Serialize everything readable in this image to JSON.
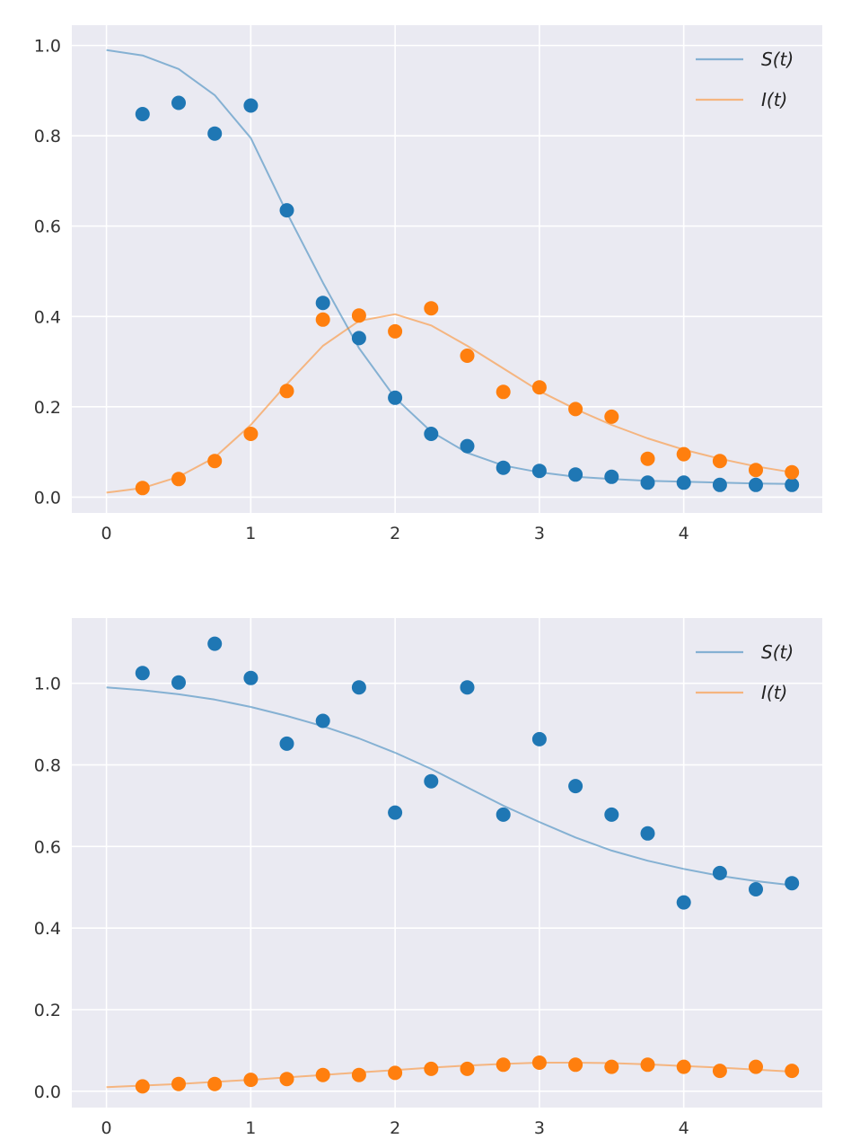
{
  "chart_data": [
    {
      "type": "line",
      "title": "",
      "xlabel": "",
      "ylabel": "",
      "xlim": [
        -0.24,
        4.96
      ],
      "ylim": [
        -0.035,
        1.045
      ],
      "xticks": [
        "0",
        "1",
        "2",
        "3",
        "4"
      ],
      "yticks": [
        "0.0",
        "0.2",
        "0.4",
        "0.6",
        "0.8",
        "1.0"
      ],
      "grid": true,
      "legend_position": "top-right",
      "colors": {
        "S": "#1f77b4",
        "I": "#ff7f0e",
        "background": "#eaeaf2"
      },
      "legend": [
        {
          "label": "S(t)",
          "series": "S"
        },
        {
          "label": "I(t)",
          "series": "I"
        }
      ],
      "series": [
        {
          "name": "S(t)",
          "kind": "line",
          "key": "S",
          "x": [
            0,
            0.25,
            0.5,
            0.75,
            1,
            1.25,
            1.5,
            1.75,
            2,
            2.25,
            2.5,
            2.75,
            3,
            3.25,
            3.5,
            3.75,
            4,
            4.25,
            4.5,
            4.75
          ],
          "y": [
            0.99,
            0.978,
            0.948,
            0.89,
            0.795,
            0.63,
            0.475,
            0.33,
            0.22,
            0.145,
            0.098,
            0.07,
            0.055,
            0.045,
            0.04,
            0.036,
            0.034,
            0.032,
            0.03,
            0.029
          ]
        },
        {
          "name": "I(t)",
          "kind": "line",
          "key": "I",
          "x": [
            0,
            0.25,
            0.5,
            0.75,
            1,
            1.25,
            1.5,
            1.75,
            2,
            2.25,
            2.5,
            2.75,
            3,
            3.25,
            3.5,
            3.75,
            4,
            4.25,
            4.5,
            4.75
          ],
          "y": [
            0.01,
            0.02,
            0.045,
            0.088,
            0.16,
            0.25,
            0.335,
            0.39,
            0.405,
            0.38,
            0.335,
            0.285,
            0.235,
            0.195,
            0.16,
            0.13,
            0.105,
            0.085,
            0.068,
            0.055
          ]
        },
        {
          "name": "S data",
          "kind": "scatter",
          "key": "S",
          "x": [
            0.25,
            0.5,
            0.75,
            1,
            1.25,
            1.5,
            1.75,
            2,
            2.25,
            2.5,
            2.75,
            3,
            3.25,
            3.5,
            3.75,
            4,
            4.25,
            4.5,
            4.75
          ],
          "y": [
            0.848,
            0.873,
            0.805,
            0.867,
            0.635,
            0.43,
            0.352,
            0.22,
            0.14,
            0.113,
            0.065,
            0.058,
            0.05,
            0.045,
            0.032,
            0.032,
            0.027,
            0.027,
            0.027
          ]
        },
        {
          "name": "I data",
          "kind": "scatter",
          "key": "I",
          "x": [
            0.25,
            0.5,
            0.75,
            1,
            1.25,
            1.5,
            1.75,
            2,
            2.25,
            2.5,
            2.75,
            3,
            3.25,
            3.5,
            3.75,
            4,
            4.25,
            4.5,
            4.75
          ],
          "y": [
            0.02,
            0.04,
            0.08,
            0.14,
            0.235,
            0.393,
            0.402,
            0.367,
            0.418,
            0.313,
            0.233,
            0.243,
            0.195,
            0.178,
            0.085,
            0.095,
            0.08,
            0.06,
            0.055
          ]
        }
      ]
    },
    {
      "type": "line",
      "title": "",
      "xlabel": "",
      "ylabel": "",
      "xlim": [
        -0.24,
        4.96
      ],
      "ylim": [
        -0.04,
        1.16
      ],
      "xticks": [
        "0",
        "1",
        "2",
        "3",
        "4"
      ],
      "yticks": [
        "0.0",
        "0.2",
        "0.4",
        "0.6",
        "0.8",
        "1.0"
      ],
      "grid": true,
      "legend_position": "top-right",
      "colors": {
        "S": "#1f77b4",
        "I": "#ff7f0e",
        "background": "#eaeaf2"
      },
      "legend": [
        {
          "label": "S(t)",
          "series": "S"
        },
        {
          "label": "I(t)",
          "series": "I"
        }
      ],
      "series": [
        {
          "name": "S(t)",
          "kind": "line",
          "key": "S",
          "x": [
            0,
            0.25,
            0.5,
            0.75,
            1,
            1.25,
            1.5,
            1.75,
            2,
            2.25,
            2.5,
            2.75,
            3,
            3.25,
            3.5,
            3.75,
            4,
            4.25,
            4.5,
            4.75
          ],
          "y": [
            0.99,
            0.983,
            0.973,
            0.96,
            0.942,
            0.92,
            0.895,
            0.865,
            0.83,
            0.79,
            0.745,
            0.7,
            0.66,
            0.622,
            0.59,
            0.565,
            0.545,
            0.528,
            0.515,
            0.505
          ]
        },
        {
          "name": "I(t)",
          "kind": "line",
          "key": "I",
          "x": [
            0,
            0.25,
            0.5,
            0.75,
            1,
            1.25,
            1.5,
            1.75,
            2,
            2.25,
            2.5,
            2.75,
            3,
            3.25,
            3.5,
            3.75,
            4,
            4.25,
            4.5,
            4.75
          ],
          "y": [
            0.01,
            0.014,
            0.018,
            0.023,
            0.028,
            0.034,
            0.04,
            0.046,
            0.052,
            0.058,
            0.063,
            0.067,
            0.07,
            0.07,
            0.069,
            0.066,
            0.062,
            0.058,
            0.053,
            0.048
          ]
        },
        {
          "name": "S data",
          "kind": "scatter",
          "key": "S",
          "x": [
            0.25,
            0.5,
            0.75,
            1,
            1.25,
            1.5,
            1.75,
            2,
            2.25,
            2.5,
            2.75,
            3,
            3.25,
            3.5,
            3.75,
            4,
            4.25,
            4.5,
            4.75
          ],
          "y": [
            1.025,
            1.002,
            1.097,
            1.013,
            0.852,
            0.908,
            0.99,
            0.683,
            0.76,
            0.99,
            0.678,
            0.863,
            0.748,
            0.678,
            0.632,
            0.463,
            0.535,
            0.495,
            0.51
          ]
        },
        {
          "name": "I data",
          "kind": "scatter",
          "key": "I",
          "x": [
            0.25,
            0.5,
            0.75,
            1,
            1.25,
            1.5,
            1.75,
            2,
            2.25,
            2.5,
            2.75,
            3,
            3.25,
            3.5,
            3.75,
            4,
            4.25,
            4.5,
            4.75
          ],
          "y": [
            0.012,
            0.018,
            0.018,
            0.028,
            0.03,
            0.04,
            0.04,
            0.045,
            0.055,
            0.055,
            0.065,
            0.07,
            0.065,
            0.06,
            0.065,
            0.06,
            0.05,
            0.06,
            0.05
          ]
        }
      ]
    }
  ]
}
